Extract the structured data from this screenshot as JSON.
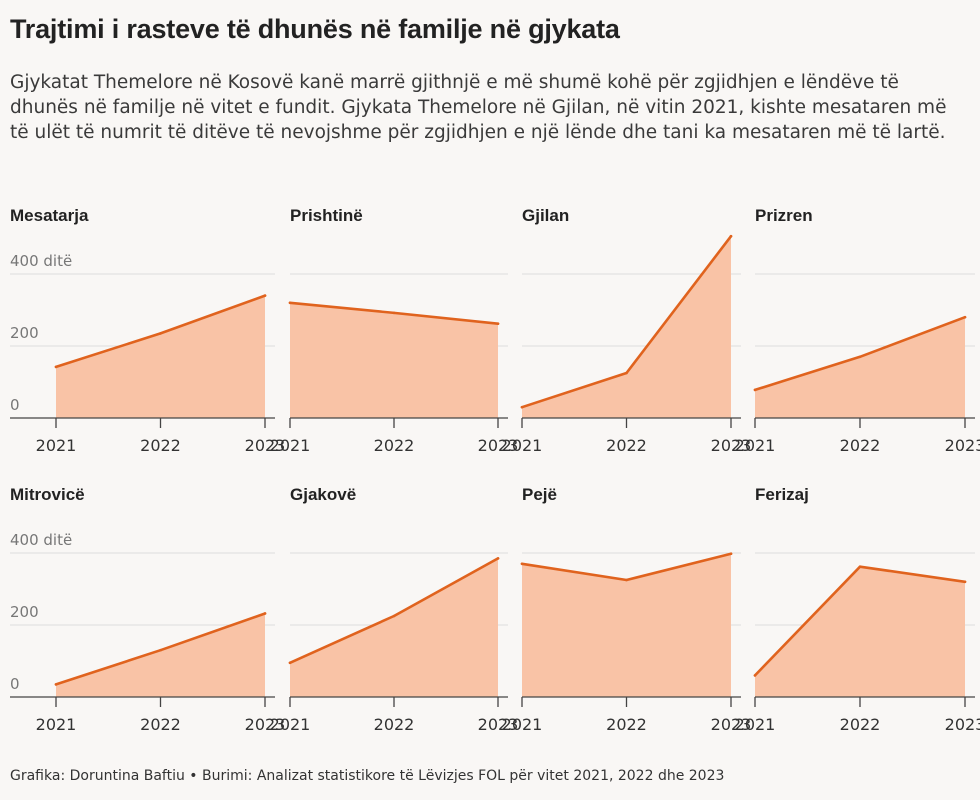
{
  "title": "Trajtimi i rasteve të dhunës në familje në gjykata",
  "subtitle": "Gjykatat Themelore në Kosovë kanë marrë gjithnjë e më shumë kohë për zgjidhjen e lëndëve të dhunës në familje në vitet e fundit. Gjykata Themelore në Gjilan, në vitin 2021, kishte mesataren më të ulët të numrit të ditëve të nevojshme për zgjidhjen e një lënde dhe tani ka mesataren më të lartë.",
  "footer": "Grafika: Doruntina Baftiu • Burimi: Analizat statistikore të Lëvizjes FOL për vitet 2021, 2022 dhe 2023",
  "colors": {
    "line": "#e0631e",
    "area": "#f9c3a6",
    "grid": "#dddddd",
    "axis": "#444444",
    "tick_label": "#333333",
    "y_label": "#777777"
  },
  "chart_data": [
    {
      "type": "area",
      "title": "Mesatarja",
      "x": [
        "2021",
        "2022",
        "2023"
      ],
      "values": [
        142,
        235,
        340
      ],
      "ylim": [
        0,
        400
      ],
      "yticks": [
        "0",
        "200",
        "400 ditë"
      ]
    },
    {
      "type": "area",
      "title": "Prishtinë",
      "x": [
        "2021",
        "2022",
        "2023"
      ],
      "values": [
        320,
        292,
        262
      ],
      "ylim": [
        0,
        400
      ],
      "yticks": [
        "0",
        "200",
        "400 ditë"
      ]
    },
    {
      "type": "area",
      "title": "Gjilan",
      "x": [
        "2021",
        "2022",
        "2023"
      ],
      "values": [
        30,
        125,
        505
      ],
      "ylim": [
        0,
        400
      ],
      "yticks": [
        "0",
        "200",
        "400 ditë"
      ]
    },
    {
      "type": "area",
      "title": "Prizren",
      "x": [
        "2021",
        "2022",
        "2023"
      ],
      "values": [
        78,
        170,
        280
      ],
      "ylim": [
        0,
        400
      ],
      "yticks": [
        "0",
        "200",
        "400 ditë"
      ]
    },
    {
      "type": "area",
      "title": "Mitrovicë",
      "x": [
        "2021",
        "2022",
        "2023"
      ],
      "values": [
        35,
        130,
        232
      ],
      "ylim": [
        0,
        400
      ],
      "yticks": [
        "0",
        "200",
        "400 ditë"
      ]
    },
    {
      "type": "area",
      "title": "Gjakovë",
      "x": [
        "2021",
        "2022",
        "2023"
      ],
      "values": [
        95,
        225,
        385
      ],
      "ylim": [
        0,
        400
      ],
      "yticks": [
        "0",
        "200",
        "400 ditë"
      ]
    },
    {
      "type": "area",
      "title": "Pejë",
      "x": [
        "2021",
        "2022",
        "2023"
      ],
      "values": [
        370,
        325,
        398
      ],
      "ylim": [
        0,
        400
      ],
      "yticks": [
        "0",
        "200",
        "400 ditë"
      ]
    },
    {
      "type": "area",
      "title": "Ferizaj",
      "x": [
        "2021",
        "2022",
        "2023"
      ],
      "values": [
        60,
        362,
        320
      ],
      "ylim": [
        0,
        400
      ],
      "yticks": [
        "0",
        "200",
        "400 ditë"
      ]
    }
  ]
}
